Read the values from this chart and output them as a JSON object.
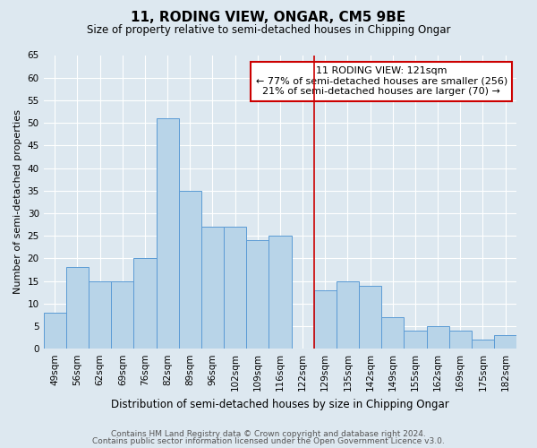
{
  "title": "11, RODING VIEW, ONGAR, CM5 9BE",
  "subtitle": "Size of property relative to semi-detached houses in Chipping Ongar",
  "xlabel": "Distribution of semi-detached houses by size in Chipping Ongar",
  "ylabel": "Number of semi-detached properties",
  "categories": [
    "49sqm",
    "56sqm",
    "62sqm",
    "69sqm",
    "76sqm",
    "82sqm",
    "89sqm",
    "96sqm",
    "102sqm",
    "109sqm",
    "116sqm",
    "122sqm",
    "129sqm",
    "135sqm",
    "142sqm",
    "149sqm",
    "155sqm",
    "162sqm",
    "169sqm",
    "175sqm",
    "182sqm"
  ],
  "values": [
    8,
    18,
    15,
    15,
    20,
    51,
    35,
    27,
    27,
    24,
    25,
    0,
    13,
    15,
    14,
    7,
    4,
    5,
    4,
    2,
    3
  ],
  "bar_color": "#b8d4e8",
  "bar_edge_color": "#5b9bd5",
  "vline_x_idx": 11.5,
  "vline_color": "#cc0000",
  "annotation_line1": "11 RODING VIEW: 121sqm",
  "annotation_line2": "← 77% of semi-detached houses are smaller (256)",
  "annotation_line3": "21% of semi-detached houses are larger (70) →",
  "annotation_box_color": "#cc0000",
  "ylim": [
    0,
    65
  ],
  "yticks": [
    0,
    5,
    10,
    15,
    20,
    25,
    30,
    35,
    40,
    45,
    50,
    55,
    60,
    65
  ],
  "footer1": "Contains HM Land Registry data © Crown copyright and database right 2024.",
  "footer2": "Contains public sector information licensed under the Open Government Licence v3.0.",
  "bg_color": "#dde8f0",
  "grid_color": "#ffffff",
  "title_fontsize": 11,
  "subtitle_fontsize": 8.5,
  "xlabel_fontsize": 8.5,
  "ylabel_fontsize": 8,
  "tick_fontsize": 7.5,
  "ann_fontsize": 8,
  "footer_fontsize": 6.5
}
